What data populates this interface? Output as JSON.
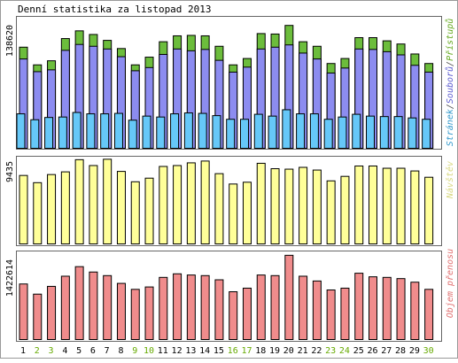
{
  "title": "Denní statistika za listopad 2013",
  "colors": {
    "outline": "#000000",
    "panel_border": "#666666",
    "weekday": "#000000",
    "weekend": "#66aa00",
    "pristupy_fill": "#6cbd3c",
    "soubory_fill": "#8c8cf0",
    "stranky_fill": "#66c8f8",
    "navstevy_fill": "#ffff99",
    "objem_fill": "#f08c8c",
    "legend_pristupy": "#66aa22",
    "legend_soubory": "#5c5cd0",
    "legend_sep": "#444444",
    "legend_stranky": "#3399cc",
    "legend_navstevy": "#d8d880",
    "legend_objem": "#e07070"
  },
  "chart_data": [
    {
      "type": "bar",
      "ymax_label": "138620",
      "ylim": [
        0,
        138620
      ],
      "legend": [
        "Stránek",
        "Souborů",
        "Přístupů"
      ],
      "categories": [
        "1",
        "2",
        "3",
        "4",
        "5",
        "6",
        "7",
        "8",
        "9",
        "10",
        "11",
        "12",
        "13",
        "14",
        "15",
        "16",
        "17",
        "18",
        "19",
        "20",
        "21",
        "22",
        "23",
        "24",
        "25",
        "26",
        "27",
        "28",
        "29",
        "30"
      ],
      "weekend": [
        2,
        3,
        9,
        10,
        16,
        17,
        23,
        24,
        30
      ],
      "series": [
        {
          "name": "Přístupů",
          "values": [
            111500,
            92000,
            96500,
            121000,
            129500,
            125500,
            119000,
            110000,
            92000,
            100500,
            117500,
            124000,
            124500,
            124000,
            112500,
            92000,
            99000,
            126500,
            126000,
            135500,
            117500,
            112500,
            93500,
            99000,
            122000,
            122000,
            118500,
            115000,
            104000,
            93500
          ]
        },
        {
          "name": "Souborů",
          "values": [
            98500,
            84500,
            86500,
            108000,
            114500,
            112500,
            109500,
            101000,
            85500,
            89000,
            103500,
            109500,
            107500,
            109000,
            97000,
            84000,
            89500,
            109500,
            111500,
            114000,
            105000,
            98500,
            83000,
            88500,
            109500,
            109000,
            106500,
            103000,
            91500,
            84000
          ]
        },
        {
          "name": "Stránek",
          "values": [
            38000,
            31500,
            34000,
            34500,
            39500,
            38000,
            38000,
            38500,
            31000,
            35500,
            34500,
            38000,
            39000,
            38500,
            36000,
            32000,
            32000,
            37500,
            35500,
            42500,
            38000,
            38000,
            32000,
            34500,
            37500,
            35500,
            35000,
            35000,
            33500,
            32000
          ]
        }
      ]
    },
    {
      "type": "bar",
      "ymax_label": "9435",
      "ylim": [
        0,
        9435
      ],
      "legend": [
        "Návštěv"
      ],
      "categories": [
        "1",
        "2",
        "3",
        "4",
        "5",
        "6",
        "7",
        "8",
        "9",
        "10",
        "11",
        "12",
        "13",
        "14",
        "15",
        "16",
        "17",
        "18",
        "19",
        "20",
        "21",
        "22",
        "23",
        "24",
        "25",
        "26",
        "27",
        "28",
        "29",
        "30"
      ],
      "series": [
        {
          "name": "Návštěv",
          "values": [
            7600,
            6800,
            7700,
            8000,
            9350,
            8700,
            9400,
            8050,
            6900,
            7300,
            8600,
            8700,
            9000,
            9200,
            7800,
            6650,
            6850,
            8950,
            8350,
            8300,
            8500,
            8200,
            7000,
            7500,
            8650,
            8650,
            8400,
            8400,
            8100,
            7400
          ]
        }
      ]
    },
    {
      "type": "bar",
      "ymax_label": "1422614",
      "ylim": [
        0,
        1422614
      ],
      "legend": [
        "Objem přenosu"
      ],
      "categories": [
        "1",
        "2",
        "3",
        "4",
        "5",
        "6",
        "7",
        "8",
        "9",
        "10",
        "11",
        "12",
        "13",
        "14",
        "15",
        "16",
        "17",
        "18",
        "19",
        "20",
        "21",
        "22",
        "23",
        "24",
        "25",
        "26",
        "27",
        "28",
        "29",
        "30"
      ],
      "series": [
        {
          "name": "Objem přenosu",
          "values": [
            930000,
            760000,
            890000,
            1060000,
            1220000,
            1130000,
            1070000,
            940000,
            840000,
            880000,
            1040000,
            1100000,
            1080000,
            1070000,
            1000000,
            800000,
            860000,
            1080000,
            1070000,
            1410000,
            1060000,
            980000,
            830000,
            860000,
            1110000,
            1050000,
            1040000,
            1020000,
            960000,
            840000
          ]
        }
      ]
    }
  ]
}
